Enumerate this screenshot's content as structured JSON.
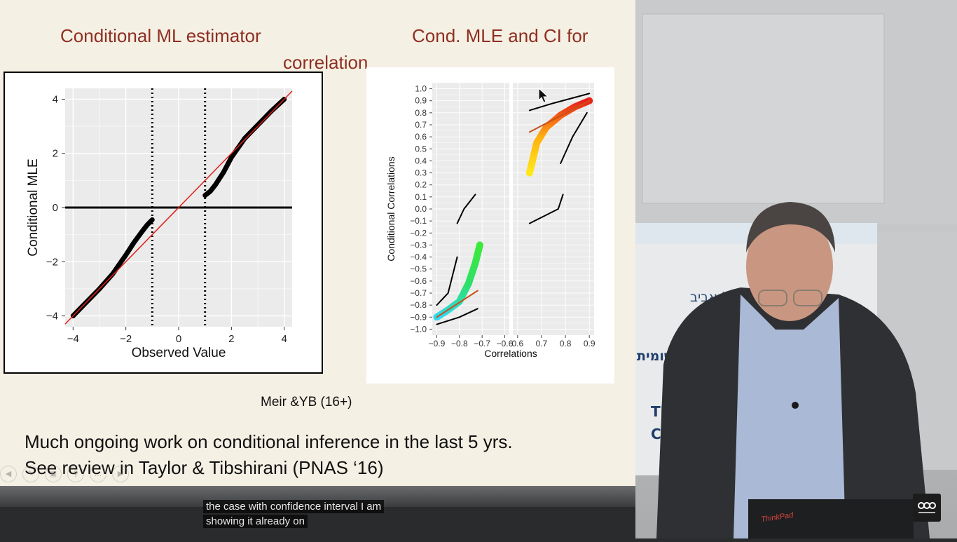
{
  "slide": {
    "title_left": "Conditional ML estimator",
    "title_right": "Cond. MLE and CI for",
    "title_right_cont": "correlation",
    "citation": "Meir &YB (16+)",
    "body_line_1": "Much ongoing work on conditional inference in the last 5 yrs.",
    "body_line_2": "See review in Taylor & Tibshirani (PNAS ‘16)"
  },
  "caption": {
    "line1": "the case with confidence interval I am",
    "line2": "showing it already on"
  },
  "background": {
    "banner_text_1": "ל-אביב",
    "banner_text_2": "TE",
    "banner_text_3": "שומית",
    "banner_text_4": "Th",
    "banner_text_5": "Cl",
    "laptop_brand": "ThinkPad"
  },
  "colors": {
    "slide_bg": "#f5f0e4",
    "title_red": "#8e2f22",
    "diag_red": "#e0201a"
  },
  "chart_data": [
    {
      "type": "line",
      "title": "",
      "xlabel": "Observed Value",
      "ylabel": "Conditional MLE",
      "xlim": [
        -4.3,
        4.3
      ],
      "ylim": [
        -4.4,
        4.4
      ],
      "x_ticks": [
        -4,
        -2,
        0,
        2,
        4
      ],
      "y_ticks": [
        -4,
        -2,
        0,
        2,
        4
      ],
      "x_tick_labels": [
        "−4",
        "−2",
        "0",
        "2",
        "4"
      ],
      "y_tick_labels": [
        "−4",
        "−2",
        "0",
        "2",
        "4"
      ],
      "vlines": [
        -1,
        1
      ],
      "hline": 0,
      "grid": true,
      "series": [
        {
          "x": [
            -4.0,
            -3.5,
            -3.0,
            -2.5,
            -2.0,
            -1.7,
            -1.4,
            -1.2,
            -1.0
          ],
          "values": [
            -4.0,
            -3.5,
            -3.0,
            -2.45,
            -1.75,
            -1.3,
            -0.9,
            -0.65,
            -0.45
          ]
        },
        {
          "x": [
            1.0,
            1.2,
            1.4,
            1.7,
            2.0,
            2.5,
            3.0,
            3.5,
            4.0
          ],
          "values": [
            0.45,
            0.6,
            0.85,
            1.3,
            1.85,
            2.55,
            3.05,
            3.55,
            4.0
          ]
        },
        {
          "x": [
            -4.3,
            4.3
          ],
          "values": [
            -4.3,
            4.3
          ]
        }
      ]
    },
    {
      "type": "line",
      "title": "",
      "xlabel": "Correlations",
      "ylabel": "Conditional Correlations",
      "x_tick_labels_left": [
        "−0.9",
        "−0.8",
        "−0.7",
        "−0.6"
      ],
      "x_tick_labels_right": [
        "0.6",
        "0.7",
        "0.8",
        "0.9"
      ],
      "x_ticks_left": [
        -0.9,
        -0.8,
        -0.7,
        -0.6
      ],
      "x_ticks_right": [
        0.6,
        0.7,
        0.8,
        0.9
      ],
      "xlim_left": [
        -0.92,
        -0.58
      ],
      "xlim_right": [
        0.58,
        0.92
      ],
      "ylim": [
        -1.05,
        1.05
      ],
      "y_ticks": [
        1.0,
        0.9,
        0.8,
        0.7,
        0.6,
        0.5,
        0.4,
        0.3,
        0.2,
        0.1,
        0.0,
        -0.1,
        -0.2,
        -0.3,
        -0.4,
        -0.5,
        -0.6,
        -0.7,
        -0.8,
        -0.9,
        -1.0
      ],
      "y_tick_labels": [
        "1.0",
        "0.9",
        "0.8",
        "0.7",
        "0.6",
        "0.5",
        "0.4",
        "0.3",
        "0.2",
        "0.1",
        "0.0",
        "−0.1",
        "−0.2",
        "−0.3",
        "−0.4",
        "−0.5",
        "−0.6",
        "−0.7",
        "−0.8",
        "−0.9",
        "−1.0"
      ],
      "grid": true,
      "left_panel": {
        "cond_mle": {
          "x": [
            -0.9,
            -0.85,
            -0.8,
            -0.76,
            -0.73,
            -0.71
          ],
          "values": [
            -0.9,
            -0.84,
            -0.77,
            -0.62,
            -0.45,
            -0.3
          ]
        },
        "diagonal": {
          "x": [
            -0.9,
            -0.72
          ],
          "values": [
            -0.9,
            -0.68
          ]
        },
        "ci_upper": [
          {
            "x": [
              -0.9,
              -0.85,
              -0.81
            ],
            "values": [
              -0.8,
              -0.7,
              -0.4
            ]
          },
          {
            "x": [
              -0.81,
              -0.78,
              -0.73
            ],
            "values": [
              -0.12,
              0.0,
              0.12
            ]
          }
        ],
        "ci_lower": {
          "x": [
            -0.9,
            -0.8,
            -0.72
          ],
          "values": [
            -0.96,
            -0.9,
            -0.83
          ]
        }
      },
      "right_panel": {
        "cond_mle": {
          "x": [
            0.65,
            0.68,
            0.72,
            0.78,
            0.84,
            0.9
          ],
          "values": [
            0.3,
            0.55,
            0.68,
            0.78,
            0.85,
            0.9
          ]
        },
        "diagonal": {
          "x": [
            0.65,
            0.9
          ],
          "values": [
            0.64,
            0.9
          ]
        },
        "ci_upper": {
          "x": [
            0.65,
            0.75,
            0.9
          ],
          "values": [
            0.82,
            0.88,
            0.96
          ]
        },
        "ci_lower": [
          {
            "x": [
              0.65,
              0.72,
              0.77,
              0.79
            ],
            "values": [
              -0.12,
              -0.05,
              0.0,
              0.12
            ]
          },
          {
            "x": [
              0.78,
              0.83,
              0.89
            ],
            "values": [
              0.38,
              0.6,
              0.8
            ]
          }
        ]
      }
    }
  ]
}
